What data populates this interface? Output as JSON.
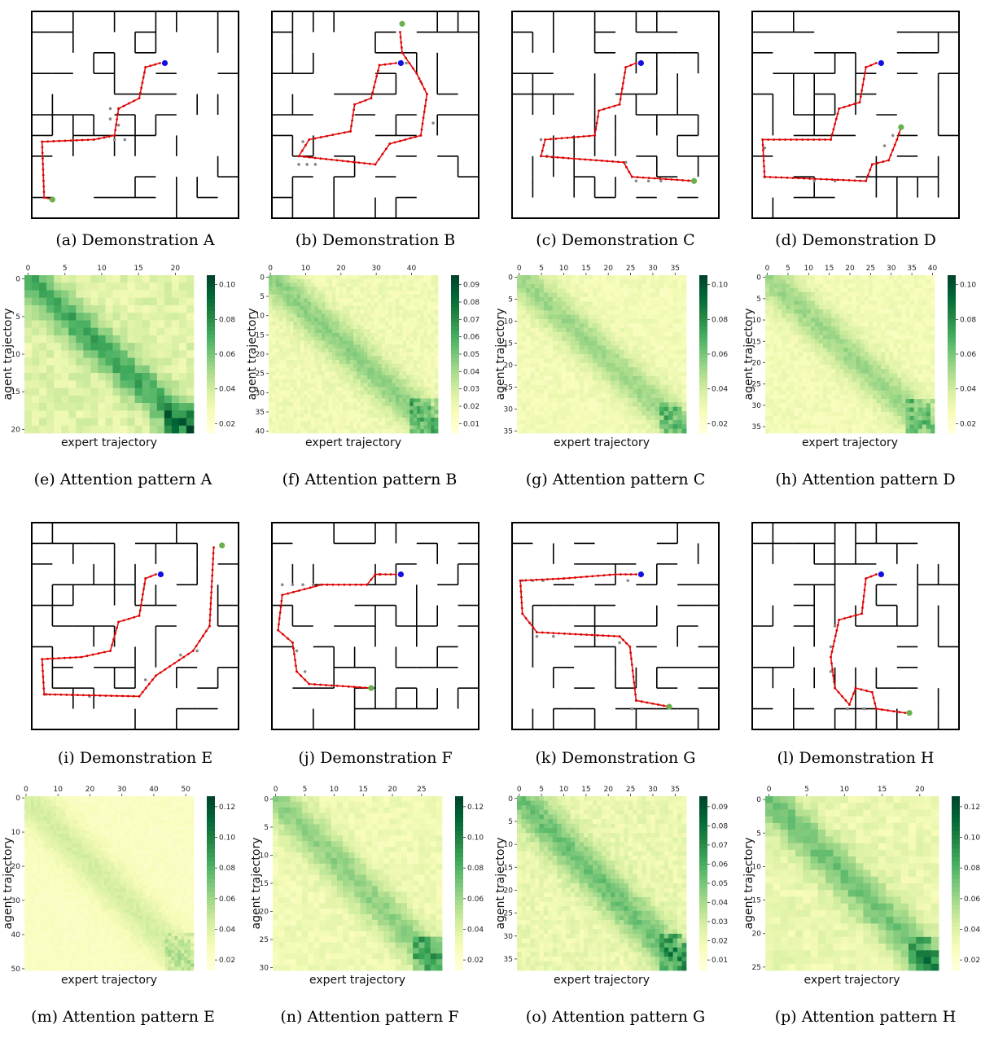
{
  "figure": {
    "mazes": [
      {
        "id": "a",
        "caption": "(a)  Demonstration A",
        "path": [
          [
            0.62,
            0.25
          ],
          [
            0.55,
            0.27
          ],
          [
            0.52,
            0.42
          ],
          [
            0.42,
            0.47
          ],
          [
            0.4,
            0.6
          ],
          [
            0.3,
            0.62
          ],
          [
            0.05,
            0.63
          ],
          [
            0.06,
            0.9
          ],
          [
            0.1,
            0.91
          ]
        ],
        "start": [
          0.62,
          0.25
        ],
        "goal": [
          0.1,
          0.91
        ],
        "dots": [
          [
            0.38,
            0.47
          ],
          [
            0.42,
            0.47
          ],
          [
            0.38,
            0.52
          ],
          [
            0.42,
            0.55
          ],
          [
            0.4,
            0.62
          ],
          [
            0.45,
            0.62
          ]
        ]
      },
      {
        "id": "b",
        "caption": "(b)  Demonstration B",
        "path": [
          [
            0.6,
            0.25
          ],
          [
            0.52,
            0.26
          ],
          [
            0.48,
            0.42
          ],
          [
            0.4,
            0.45
          ],
          [
            0.38,
            0.58
          ],
          [
            0.18,
            0.62
          ],
          [
            0.13,
            0.7
          ],
          [
            0.5,
            0.74
          ],
          [
            0.57,
            0.64
          ],
          [
            0.72,
            0.6
          ],
          [
            0.75,
            0.4
          ],
          [
            0.7,
            0.3
          ],
          [
            0.63,
            0.2
          ],
          [
            0.62,
            0.1
          ]
        ],
        "start": [
          0.6,
          0.25
        ],
        "goal": [
          0.63,
          0.06
        ],
        "dots": [
          [
            0.15,
            0.63
          ],
          [
            0.13,
            0.74
          ],
          [
            0.17,
            0.74
          ],
          [
            0.21,
            0.74
          ],
          [
            0.65,
            0.25
          ],
          [
            0.72,
            0.34
          ],
          [
            0.78,
            0.54
          ]
        ]
      },
      {
        "id": "c",
        "caption": "(c)  Demonstration C",
        "path": [
          [
            0.6,
            0.25
          ],
          [
            0.55,
            0.27
          ],
          [
            0.52,
            0.45
          ],
          [
            0.42,
            0.48
          ],
          [
            0.4,
            0.6
          ],
          [
            0.16,
            0.62
          ],
          [
            0.14,
            0.7
          ],
          [
            0.54,
            0.73
          ],
          [
            0.58,
            0.8
          ],
          [
            0.88,
            0.82
          ]
        ],
        "start": [
          0.6,
          0.25
        ],
        "goal": [
          0.88,
          0.82
        ],
        "dots": [
          [
            0.14,
            0.62
          ],
          [
            0.17,
            0.7
          ],
          [
            0.55,
            0.73
          ],
          [
            0.6,
            0.82
          ],
          [
            0.66,
            0.82
          ],
          [
            0.72,
            0.82
          ]
        ]
      },
      {
        "id": "d",
        "caption": "(d)  Demonstration D",
        "path": [
          [
            0.6,
            0.25
          ],
          [
            0.55,
            0.27
          ],
          [
            0.52,
            0.44
          ],
          [
            0.42,
            0.47
          ],
          [
            0.38,
            0.62
          ],
          [
            0.05,
            0.62
          ],
          [
            0.06,
            0.8
          ],
          [
            0.55,
            0.82
          ],
          [
            0.58,
            0.74
          ],
          [
            0.66,
            0.72
          ],
          [
            0.7,
            0.62
          ],
          [
            0.72,
            0.56
          ]
        ],
        "start": [
          0.6,
          0.25
        ],
        "goal": [
          0.72,
          0.56
        ],
        "dots": [
          [
            0.06,
            0.66
          ],
          [
            0.06,
            0.8
          ],
          [
            0.3,
            0.82
          ],
          [
            0.4,
            0.82
          ],
          [
            0.64,
            0.65
          ],
          [
            0.68,
            0.6
          ]
        ]
      },
      {
        "id": "e",
        "caption": "(i)  Demonstration E",
        "path": [
          [
            0.6,
            0.25
          ],
          [
            0.55,
            0.27
          ],
          [
            0.52,
            0.45
          ],
          [
            0.42,
            0.48
          ],
          [
            0.38,
            0.62
          ],
          [
            0.24,
            0.65
          ],
          [
            0.05,
            0.66
          ],
          [
            0.06,
            0.83
          ],
          [
            0.52,
            0.84
          ],
          [
            0.6,
            0.74
          ],
          [
            0.78,
            0.62
          ],
          [
            0.86,
            0.5
          ],
          [
            0.88,
            0.12
          ]
        ],
        "start": [
          0.6,
          0.25
        ],
        "goal": [
          0.92,
          0.11
        ],
        "dots": [
          [
            0.07,
            0.83
          ],
          [
            0.28,
            0.84
          ],
          [
            0.55,
            0.76
          ],
          [
            0.72,
            0.64
          ],
          [
            0.8,
            0.62
          ]
        ]
      },
      {
        "id": "f",
        "caption": "(j)  Demonstration F",
        "path": [
          [
            0.6,
            0.25
          ],
          [
            0.5,
            0.25
          ],
          [
            0.46,
            0.3
          ],
          [
            0.24,
            0.3
          ],
          [
            0.05,
            0.35
          ],
          [
            0.03,
            0.52
          ],
          [
            0.1,
            0.58
          ],
          [
            0.12,
            0.72
          ],
          [
            0.18,
            0.78
          ],
          [
            0.48,
            0.8
          ]
        ],
        "start": [
          0.6,
          0.25
        ],
        "goal": [
          0.48,
          0.8
        ],
        "dots": [
          [
            0.05,
            0.3
          ],
          [
            0.1,
            0.3
          ],
          [
            0.15,
            0.3
          ],
          [
            0.2,
            0.3
          ],
          [
            0.52,
            0.25
          ],
          [
            0.12,
            0.62
          ],
          [
            0.16,
            0.72
          ]
        ]
      },
      {
        "id": "g",
        "caption": "(k)  Demonstration G",
        "path": [
          [
            0.6,
            0.25
          ],
          [
            0.5,
            0.25
          ],
          [
            0.25,
            0.27
          ],
          [
            0.04,
            0.28
          ],
          [
            0.05,
            0.44
          ],
          [
            0.12,
            0.53
          ],
          [
            0.52,
            0.55
          ],
          [
            0.57,
            0.6
          ],
          [
            0.6,
            0.86
          ],
          [
            0.76,
            0.89
          ]
        ],
        "start": [
          0.6,
          0.25
        ],
        "goal": [
          0.76,
          0.89
        ],
        "dots": [
          [
            0.05,
            0.28
          ],
          [
            0.1,
            0.28
          ],
          [
            0.15,
            0.28
          ],
          [
            0.56,
            0.28
          ],
          [
            0.12,
            0.55
          ],
          [
            0.2,
            0.55
          ],
          [
            0.52,
            0.58
          ],
          [
            0.58,
            0.9
          ]
        ]
      },
      {
        "id": "h",
        "caption": "(l)  Demonstration H",
        "path": [
          [
            0.6,
            0.25
          ],
          [
            0.55,
            0.27
          ],
          [
            0.53,
            0.44
          ],
          [
            0.42,
            0.47
          ],
          [
            0.38,
            0.65
          ],
          [
            0.4,
            0.8
          ],
          [
            0.47,
            0.88
          ],
          [
            0.5,
            0.8
          ],
          [
            0.58,
            0.82
          ],
          [
            0.6,
            0.9
          ],
          [
            0.74,
            0.92
          ]
        ],
        "start": [
          0.6,
          0.25
        ],
        "goal": [
          0.76,
          0.92
        ],
        "dots": [
          [
            0.4,
            0.5
          ],
          [
            0.38,
            0.6
          ],
          [
            0.38,
            0.72
          ],
          [
            0.46,
            0.9
          ],
          [
            0.54,
            0.9
          ]
        ]
      }
    ],
    "heatmaps": [
      {
        "id": "A",
        "caption": "(e)  Attention pattern A",
        "xlabel": "expert trajectory",
        "ylabel": "agent trajectory",
        "cols": 23,
        "rows": 21,
        "xticks": [
          0,
          5,
          10,
          15,
          20
        ],
        "yticks": [
          0,
          5,
          10,
          15,
          20
        ],
        "cbar": [
          "0.10",
          "0.08",
          "0.06",
          "0.04",
          "0.02"
        ],
        "peak": 0.85
      },
      {
        "id": "B",
        "caption": "(f)  Attention pattern B",
        "xlabel": "expert trajectory",
        "ylabel": "agent trajectory",
        "cols": 48,
        "rows": 41,
        "xticks": [
          0,
          10,
          20,
          30,
          40
        ],
        "yticks": [
          0,
          5,
          10,
          15,
          20,
          25,
          30,
          35,
          40
        ],
        "cbar": [
          "0.09",
          "0.08",
          "0.07",
          "0.06",
          "0.05",
          "0.04",
          "0.03",
          "0.02",
          "0.01"
        ],
        "peak": 0.6
      },
      {
        "id": "C",
        "caption": "(g)  Attention pattern C",
        "xlabel": "expert trajectory",
        "ylabel": "agent trajectory",
        "cols": 38,
        "rows": 36,
        "xticks": [
          0,
          5,
          10,
          15,
          20,
          25,
          30,
          35
        ],
        "yticks": [
          0,
          5,
          10,
          15,
          20,
          25,
          30,
          35
        ],
        "cbar": [
          "0.10",
          "0.08",
          "0.06",
          "0.04",
          "0.02"
        ],
        "peak": 0.55
      },
      {
        "id": "D",
        "caption": "(h)  Attention pattern D",
        "xlabel": "expert trajectory",
        "ylabel": "agent trajectory",
        "cols": 41,
        "rows": 37,
        "xticks": [
          0,
          5,
          10,
          15,
          20,
          25,
          30,
          35,
          40
        ],
        "yticks": [
          0,
          5,
          10,
          15,
          20,
          25,
          30,
          35
        ],
        "cbar": [
          "0.10",
          "0.08",
          "0.06",
          "0.04",
          "0.02"
        ],
        "peak": 0.55
      },
      {
        "id": "E",
        "caption": "(m)  Attention pattern E",
        "xlabel": "expert trajectory",
        "ylabel": "agent trajectory",
        "cols": 53,
        "rows": 51,
        "xticks": [
          0,
          10,
          20,
          30,
          40,
          50
        ],
        "yticks": [
          0,
          10,
          20,
          30,
          40,
          50
        ],
        "cbar": [
          "0.12",
          "0.10",
          "0.08",
          "0.06",
          "0.04",
          "0.02"
        ],
        "peak": 0.35
      },
      {
        "id": "F",
        "caption": "(n)  Attention pattern F",
        "xlabel": "expert trajectory",
        "ylabel": "agent trajectory",
        "cols": 29,
        "rows": 31,
        "xticks": [
          0,
          5,
          10,
          15,
          20,
          25
        ],
        "yticks": [
          0,
          5,
          10,
          15,
          20,
          25,
          30
        ],
        "cbar": [
          "0.12",
          "0.10",
          "0.08",
          "0.06",
          "0.04",
          "0.02"
        ],
        "peak": 0.6
      },
      {
        "id": "G",
        "caption": "(o)  Attention pattern G",
        "xlabel": "expert trajectory",
        "ylabel": "agent trajectory",
        "cols": 38,
        "rows": 38,
        "xticks": [
          0,
          5,
          10,
          15,
          20,
          25,
          30,
          35
        ],
        "yticks": [
          0,
          5,
          10,
          15,
          20,
          25,
          30,
          35
        ],
        "cbar": [
          "0.09",
          "0.08",
          "0.07",
          "0.06",
          "0.05",
          "0.04",
          "0.03",
          "0.02",
          "0.01"
        ],
        "peak": 0.7
      },
      {
        "id": "H",
        "caption": "(p)  Attention pattern H",
        "xlabel": "expert trajectory",
        "ylabel": "agent trajectory",
        "cols": 23,
        "rows": 26,
        "xticks": [
          0,
          5,
          10,
          15,
          20
        ],
        "yticks": [
          0,
          5,
          10,
          15,
          20,
          25
        ],
        "cbar": [
          "0.12",
          "0.10",
          "0.08",
          "0.06",
          "0.04",
          "0.02"
        ],
        "peak": 0.7
      }
    ]
  }
}
